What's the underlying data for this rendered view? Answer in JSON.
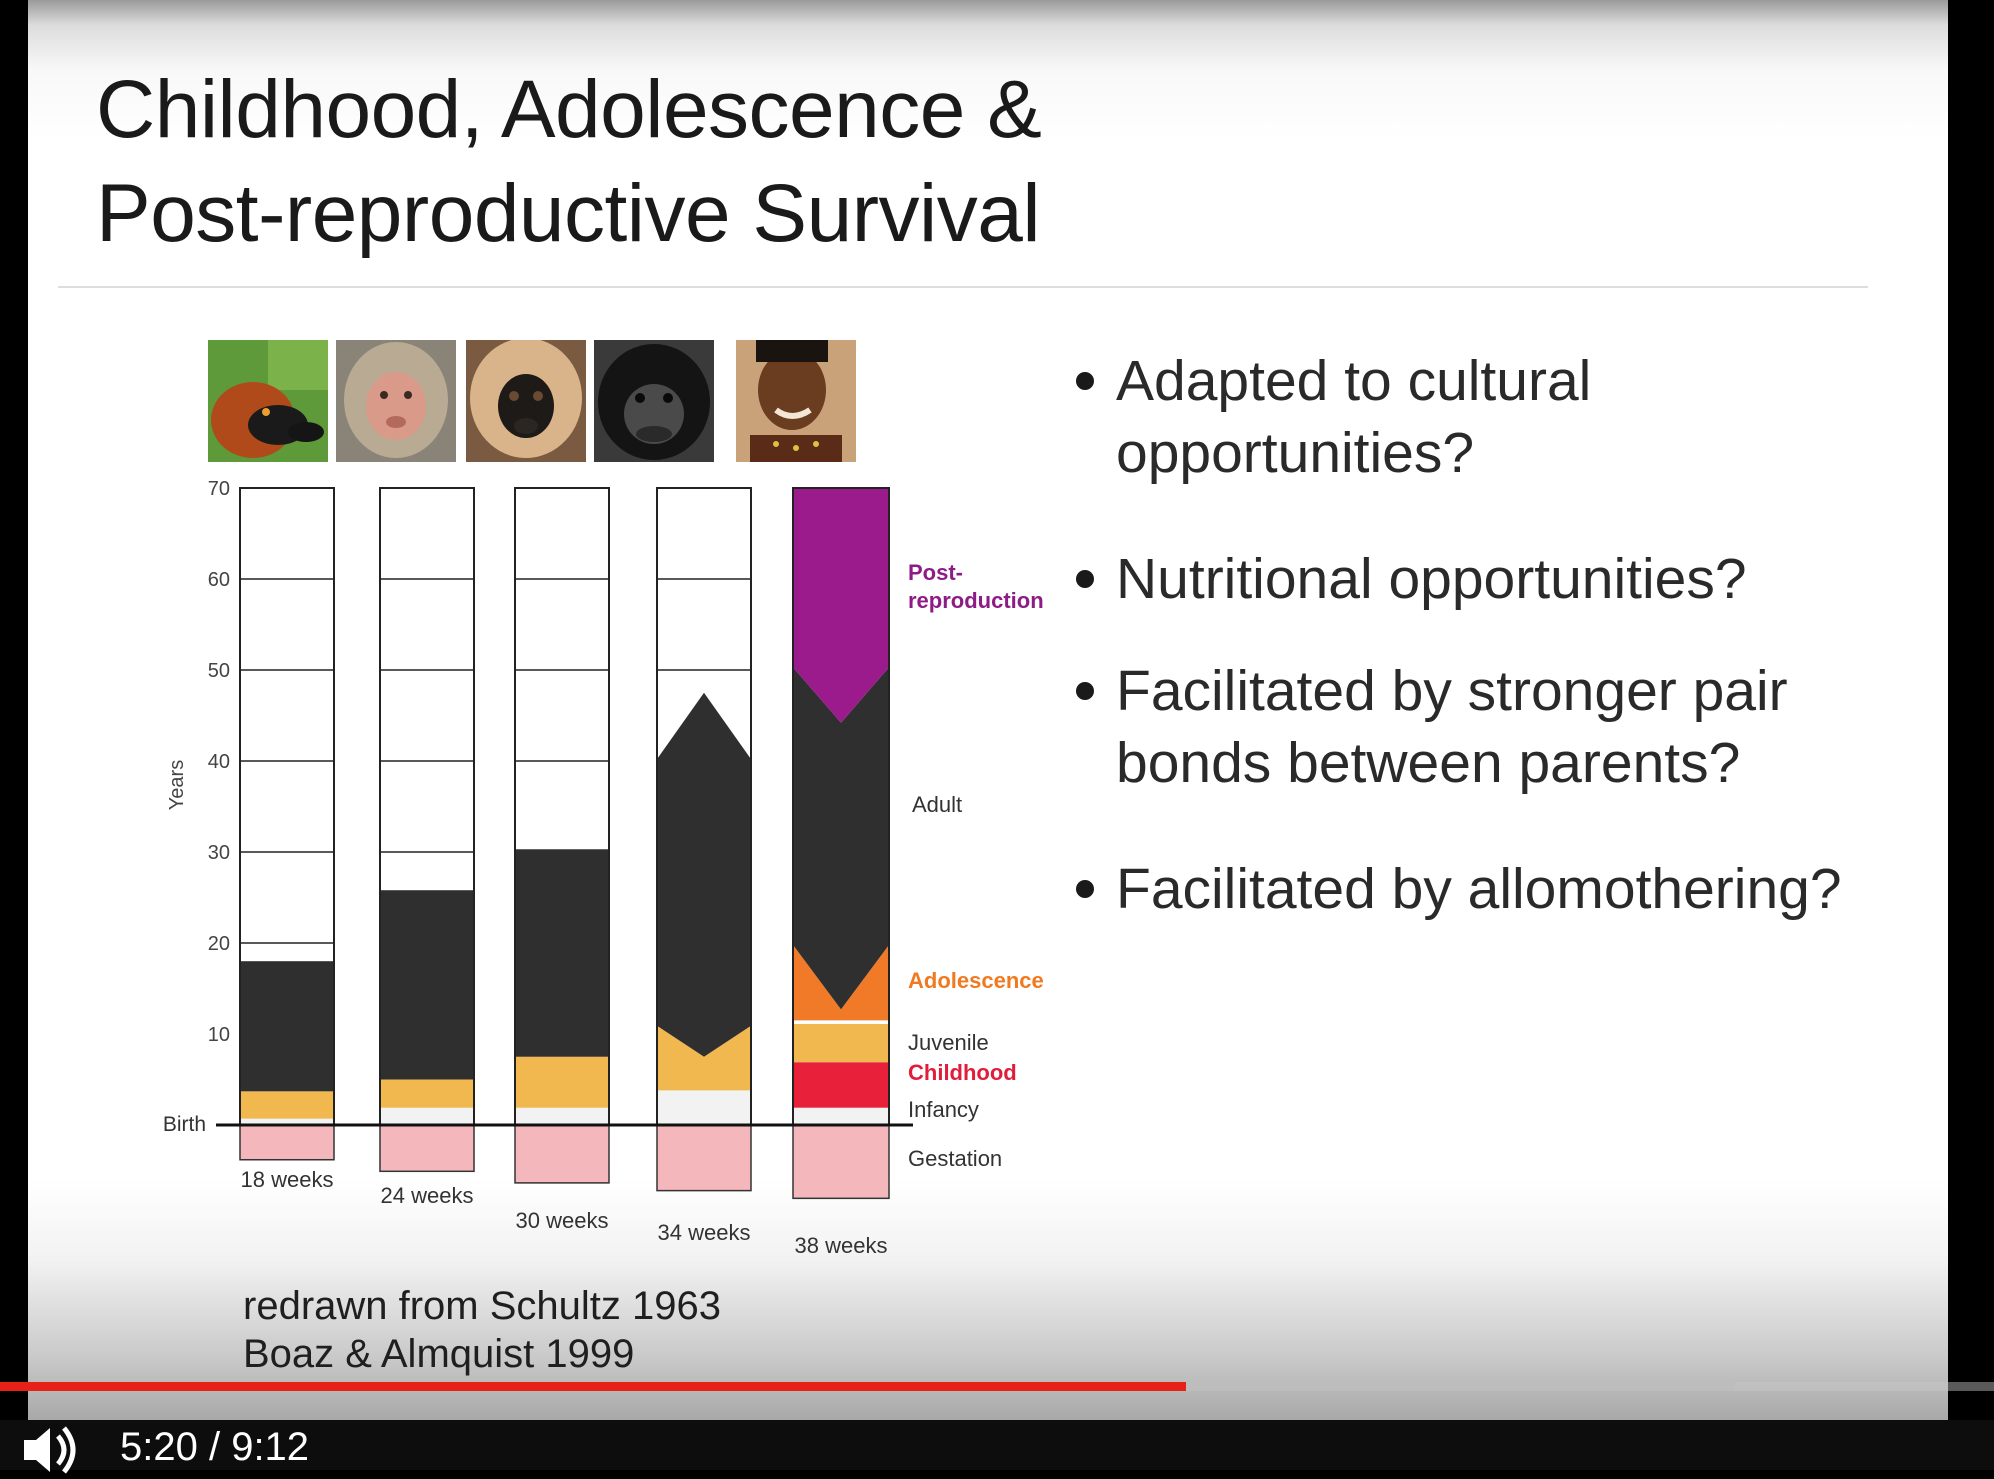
{
  "slide": {
    "title": "Childhood, Adolescence &\nPost-reproductive Survival",
    "bullets": [
      "Adapted to cultural opportunities?",
      "Nutritional opportunities?",
      "Facilitated by stronger pair bonds between parents?",
      "Facilitated by allomothering?"
    ],
    "citation": "redrawn from Schultz 1963\nBoaz & Almquist 1999",
    "photos": [
      "lemur-photo",
      "macaque-photo",
      "gibbon-photo",
      "chimpanzee-photo",
      "human-photo"
    ]
  },
  "chart_data": {
    "type": "bar",
    "stacked": true,
    "ylabel": "Years",
    "ylim": [
      0,
      70
    ],
    "yticks": [
      10,
      20,
      30,
      40,
      50,
      60,
      70
    ],
    "baseline_label": "Birth",
    "categories": [
      "18 weeks",
      "24 weeks",
      "30 weeks",
      "34 weeks",
      "38 weeks"
    ],
    "gestation_weeks": [
      18,
      24,
      30,
      34,
      38
    ],
    "stages": [
      {
        "name": "Gestation",
        "color": "#f4b8bc"
      },
      {
        "name": "Infancy",
        "color": "#f2f2f2"
      },
      {
        "name": "Childhood",
        "color": "#e8203a"
      },
      {
        "name": "Juvenile",
        "color": "#f0b84e"
      },
      {
        "name": "Adolescence",
        "color": "#f07a28"
      },
      {
        "name": "Adult",
        "color": "#2f2f2f"
      },
      {
        "name": "Post-reproduction",
        "color": "#9b1a8c"
      }
    ],
    "bars": [
      {
        "category": "18 weeks",
        "infancy_end": 0.7,
        "childhood_end": null,
        "juvenile_end": 3.7,
        "adolescence_end": null,
        "adult_peak": 18,
        "adult_edge": 18,
        "post_peak": null,
        "post_edge": null,
        "lifespan": 70
      },
      {
        "category": "24 weeks",
        "infancy_end": 1.9,
        "childhood_end": null,
        "juvenile_end": 5.0,
        "adolescence_end": null,
        "adult_peak": 25.8,
        "adult_edge": 25.8,
        "post_peak": null,
        "post_edge": null,
        "lifespan": 70
      },
      {
        "category": "30 weeks",
        "infancy_end": 1.9,
        "childhood_end": null,
        "juvenile_end": 7.5,
        "adolescence_end": null,
        "adult_peak": 30.3,
        "adult_edge": 30.3,
        "post_peak": null,
        "post_edge": null,
        "lifespan": 70
      },
      {
        "category": "34 weeks",
        "infancy_end": 3.8,
        "childhood_end": null,
        "juvenile_end": 7.5,
        "adolescence_end": null,
        "adult_peak": 47.5,
        "adult_edge": 40.2,
        "juvenile_edge": 10.9,
        "post_peak": null,
        "post_edge": null,
        "lifespan": 70
      },
      {
        "category": "38 weeks",
        "infancy_end": 1.9,
        "childhood_end": 6.9,
        "juvenile_end": 11.1,
        "adolescence_end": 11.5,
        "adolescence_edge": 19.8,
        "adult_peak": 44.2,
        "adult_edge": 50.3,
        "post_edge": 50.3,
        "lifespan": 70
      }
    ],
    "stage_labels": [
      "Post-\nreproduction",
      "Adult",
      "Adolescence",
      "Juvenile",
      "Childhood",
      "Infancy",
      "Gestation"
    ]
  },
  "player": {
    "time_current": "5:20",
    "time_total": "9:12",
    "time_text": "5:20 / 9:12",
    "progress_played": 0.595,
    "progress_buffered": 0.87,
    "colors": {
      "played": "#e62117",
      "buffered": "#bdbdbd"
    }
  }
}
